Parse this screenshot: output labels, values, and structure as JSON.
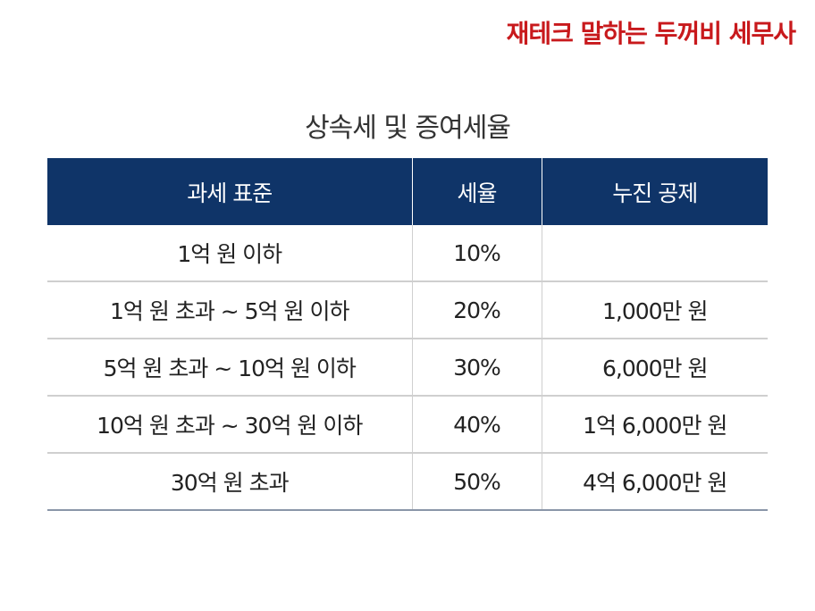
{
  "brand": "재테크 말하는 두꺼비 세무사",
  "title": "상속세 및 증여세율",
  "table": {
    "headers": [
      "과세 표준",
      "세율",
      "누진 공제"
    ],
    "rows": [
      [
        "1억 원 이하",
        "10%",
        ""
      ],
      [
        "1억 원 초과 ~ 5억 원 이하",
        "20%",
        "1,000만 원"
      ],
      [
        "5억 원 초과 ~ 10억 원 이하",
        "30%",
        "6,000만 원"
      ],
      [
        "10억 원 초과 ~ 30억 원 이하",
        "40%",
        "1억 6,000만 원"
      ],
      [
        "30억 원 초과",
        "50%",
        "4억 6,000만 원"
      ]
    ]
  },
  "colors": {
    "brand": "#c8191c",
    "header_bg": "#0f3468",
    "header_text": "#ffffff",
    "row_border": "#cfcfcf"
  }
}
